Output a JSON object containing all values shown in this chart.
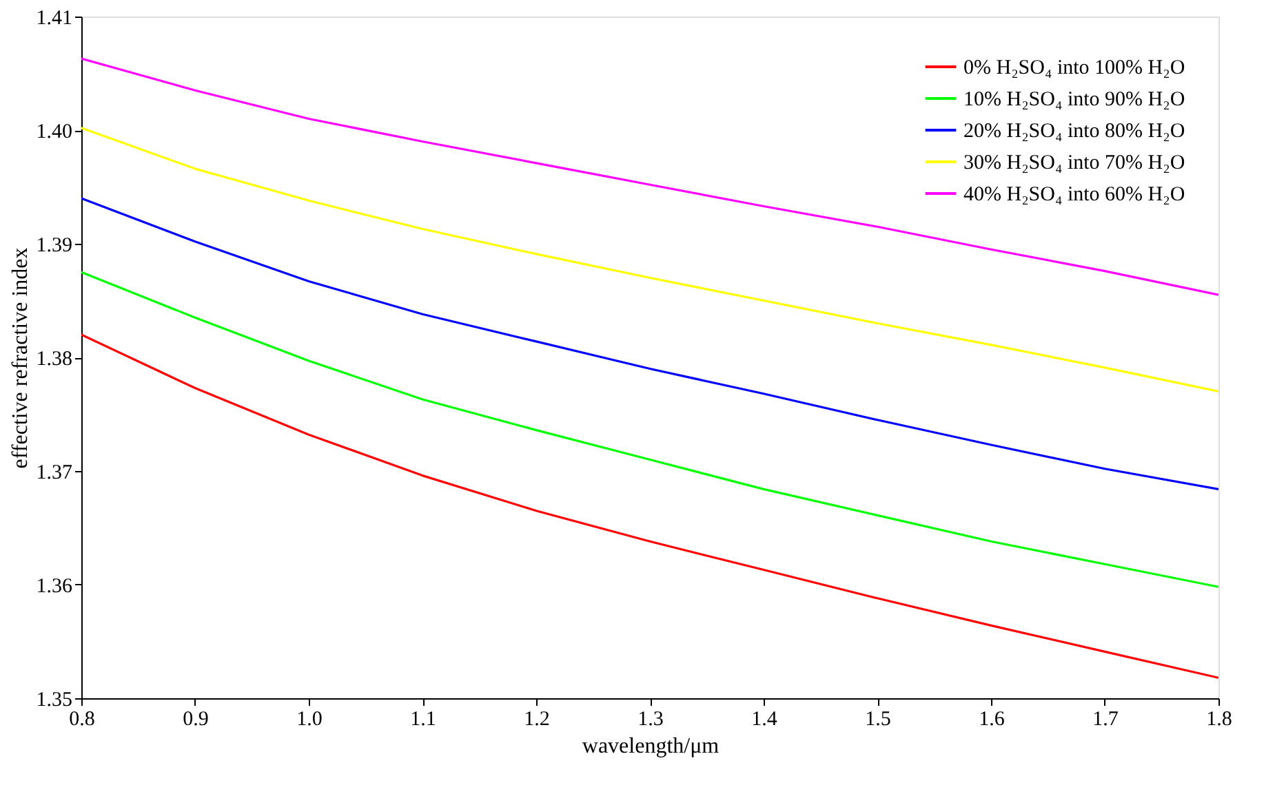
{
  "chart_data": {
    "type": "line",
    "xlabel": "wavelength/μm",
    "ylabel": "effective refractive index",
    "x": [
      0.8,
      0.9,
      1.0,
      1.1,
      1.2,
      1.3,
      1.4,
      1.5,
      1.6,
      1.7,
      1.8
    ],
    "series": [
      {
        "name": "0% H₂SO₄ into 100% H₂O",
        "color": "#ff0000",
        "values": [
          1.382,
          1.3773,
          1.3732,
          1.3696,
          1.3665,
          1.3638,
          1.3613,
          1.3588,
          1.3564,
          1.3541,
          1.3518
        ]
      },
      {
        "name": "10% H₂SO₄ into 90% H₂O",
        "color": "#00ff00",
        "values": [
          1.3875,
          1.3835,
          1.3797,
          1.3763,
          1.3736,
          1.371,
          1.3684,
          1.3661,
          1.3638,
          1.3618,
          1.3598
        ]
      },
      {
        "name": "20% H₂SO₄ into 80% H₂O",
        "color": "#0000ff",
        "values": [
          1.394,
          1.3902,
          1.3867,
          1.3838,
          1.3814,
          1.379,
          1.3768,
          1.3745,
          1.3723,
          1.3702,
          1.3684
        ]
      },
      {
        "name": "30% H₂SO₄ into 70% H₂O",
        "color": "#ffff00",
        "values": [
          1.4002,
          1.3966,
          1.3938,
          1.3913,
          1.3891,
          1.387,
          1.385,
          1.383,
          1.3811,
          1.3791,
          1.377
        ]
      },
      {
        "name": "40% H₂SO₄ into 60% H₂O",
        "color": "#ff00ff",
        "values": [
          1.4063,
          1.4035,
          1.401,
          1.399,
          1.3971,
          1.3952,
          1.3933,
          1.3915,
          1.3895,
          1.3876,
          1.3855
        ]
      }
    ],
    "xlim": [
      0.8,
      1.8
    ],
    "xticks": [
      0.8,
      0.9,
      {
        "value": 1.0,
        "label": "1.0"
      },
      1.1,
      1.2,
      1.3,
      1.4,
      1.5,
      1.6,
      1.7,
      1.8
    ],
    "ylim": [
      1.35,
      1.41
    ],
    "yticks": [
      1.35,
      1.36,
      1.37,
      1.38,
      1.39,
      {
        "value": 1.4,
        "label": "1.40"
      },
      1.41
    ],
    "grid": false,
    "legend": "top right",
    "marker": "none",
    "line_style": "solid"
  }
}
